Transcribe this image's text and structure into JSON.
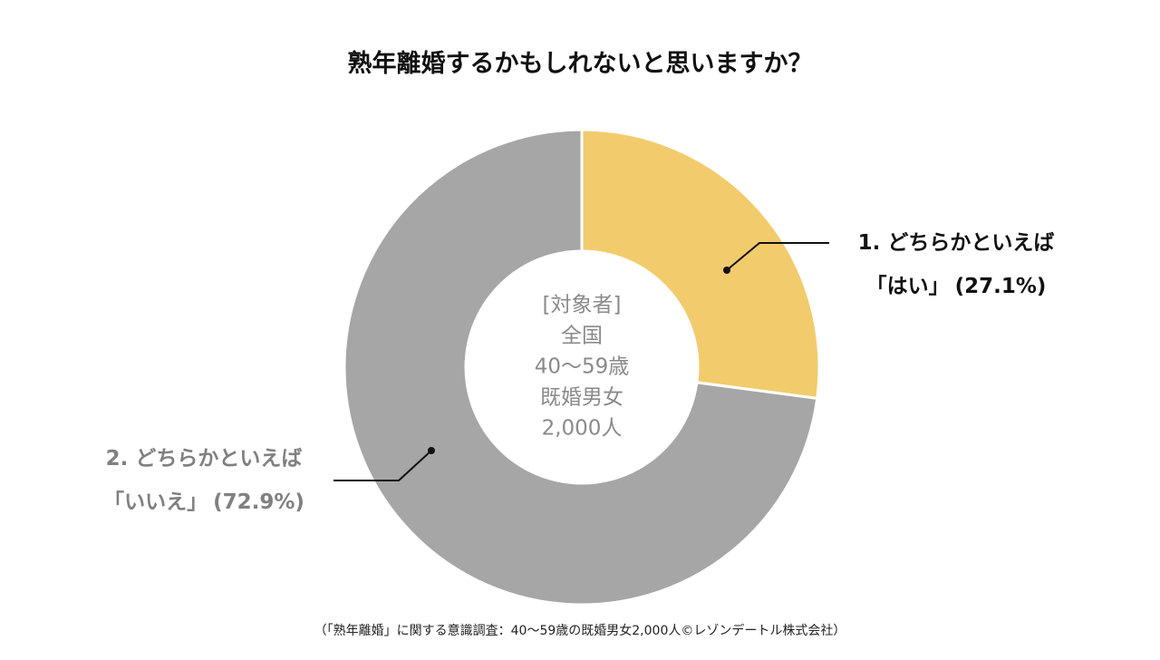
{
  "chart_data": {
    "type": "pie",
    "title": "熟年離婚するかもしれないと思いますか？",
    "categories": [
      "1. どちらかといえば\n「はい」",
      "2. どちらかといえば\n「いいえ」"
    ],
    "values": [
      27.1,
      72.9
    ],
    "value_labels": [
      "(27.1%)",
      "(72.9%)"
    ],
    "colors": [
      "#f2cb6c",
      "#a6a6a6"
    ],
    "label_colors": [
      "#111111",
      "#808080"
    ],
    "center_text": [
      "[対象者]",
      "全国",
      "40〜59歳",
      "既婚男女",
      "2,000人"
    ],
    "source": "（「熟年離婚」に関する意識調査：40〜59歳の既婚男女2,000人©レゾンデートル株式会社）"
  }
}
